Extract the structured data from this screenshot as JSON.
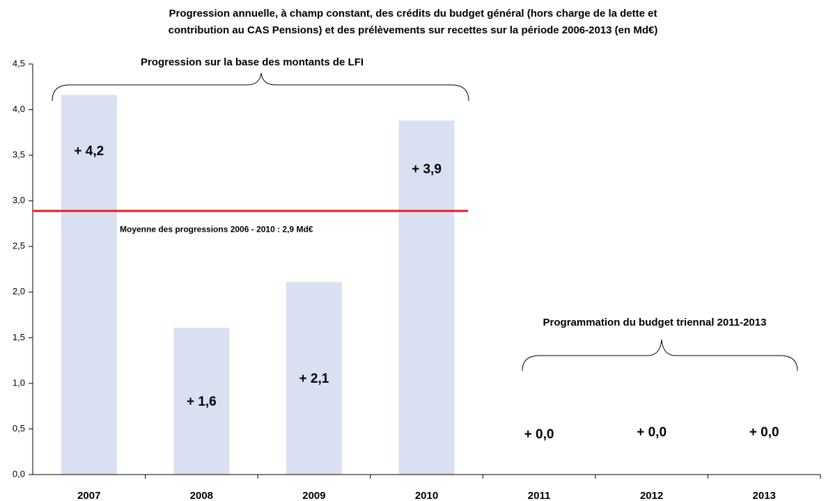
{
  "chart_data": {
    "type": "bar",
    "title": [
      "Progression annuelle, à champ constant, des crédits du budget général (hors charge de la dette et",
      "contribution au CAS Pensions) et des prélèvements sur recettes sur la période 2006-2013 (en Md€)"
    ],
    "categories": [
      "2007",
      "2008",
      "2009",
      "2010",
      "2011",
      "2012",
      "2013"
    ],
    "values": [
      4.16,
      1.61,
      2.11,
      3.88,
      0,
      0,
      0
    ],
    "value_labels": [
      "+ 4,2",
      "+ 1,6",
      "+ 2,1",
      "+ 3,9",
      "+ 0,0",
      "+ 0,0",
      "+ 0,0"
    ],
    "color": "#d9e0f1",
    "ylim": [
      0,
      4.5
    ],
    "yticks": [
      {
        "value": 0,
        "label": "0,0"
      },
      {
        "value": 0.5,
        "label": "0,5"
      },
      {
        "value": 1,
        "label": "1,0"
      },
      {
        "value": 1.5,
        "label": "1,5"
      },
      {
        "value": 2,
        "label": "2,0"
      },
      {
        "value": 2.5,
        "label": "2,5"
      },
      {
        "value": 3,
        "label": "3,0"
      },
      {
        "value": 3.5,
        "label": "3,5"
      },
      {
        "value": 4,
        "label": "4,0"
      },
      {
        "value": 4.5,
        "label": "4,5"
      }
    ],
    "mean_line": {
      "value": 2.89,
      "label": "Moyenne des progressions 2006 - 2010 : 2,9 Md€",
      "color": "#ee1c1c"
    },
    "annotations": [
      "Progression sur la base des montants de LFI",
      "Programmation du budget triennal 2011-2013"
    ]
  }
}
